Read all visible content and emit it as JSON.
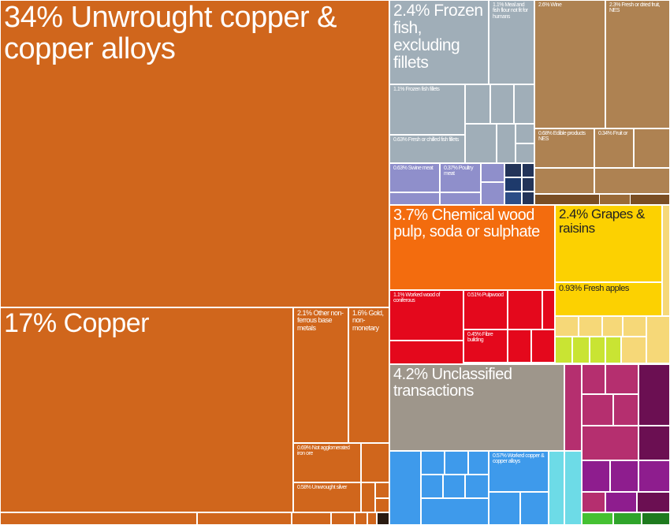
{
  "chart_data": {
    "type": "treemap",
    "title": "",
    "colors": {
      "copper": "#D0661C",
      "fish": "#A0AEB8",
      "food": "#AE8252",
      "meat": "#8F8FCB",
      "dark": "#233459",
      "wood": "#F36C0E",
      "fruit": "#FCD101",
      "fruit_light": "#F6D878",
      "fruit_green": "#C9E433",
      "red": "#E4081C",
      "gray": "#9E968B",
      "blue": "#3E9AEB",
      "cyan": "#6DDBE7",
      "pink": "#B52F6F",
      "purple": "#6B0F52",
      "magenta": "#8E1D8E"
    },
    "items": [
      {
        "id": "unwrought-copper",
        "label": "34% Unwrought copper & copper alloys",
        "value": 34,
        "color": "copper",
        "size": 38
      },
      {
        "id": "copper",
        "label": "17% Copper",
        "value": 17,
        "color": "copper",
        "size": 34
      },
      {
        "id": "other-non-ferrous",
        "label": "2.1% Other non-ferrous base metals",
        "value": 2.1,
        "color": "copper",
        "size": 9
      },
      {
        "id": "gold",
        "label": "1.6% Gold, non-monetary",
        "value": 1.6,
        "color": "copper",
        "size": 9
      },
      {
        "id": "iron-ore",
        "label": "0.69% Not agglomerated iron ore",
        "value": 0.69,
        "color": "copper",
        "size": 7
      },
      {
        "id": "silver",
        "label": "0.58% Unwrought silver",
        "value": 0.58,
        "color": "copper",
        "size": 7
      },
      {
        "id": "frozen-fish",
        "label": "2.4% Frozen fish, excluding fillets",
        "value": 2.4,
        "color": "fish",
        "size": 21
      },
      {
        "id": "fish-meal",
        "label": "1.1% Meal and fish flour not fit for humans",
        "value": 1.1,
        "color": "fish",
        "size": 7
      },
      {
        "id": "frozen-fillets",
        "label": "1.1% Frozen fish fillets",
        "value": 1.1,
        "color": "fish",
        "size": 7
      },
      {
        "id": "fresh-fillets",
        "label": "0.63% Fresh or chilled fish fillets",
        "value": 0.63,
        "color": "fish",
        "size": 7
      },
      {
        "id": "wine",
        "label": "2.6% Wine",
        "value": 2.6,
        "color": "food",
        "size": 7
      },
      {
        "id": "fresh-fruit",
        "label": "2.3% Fresh or dried fruit, NES",
        "value": 2.3,
        "color": "food",
        "size": 7
      },
      {
        "id": "edible-products",
        "label": "0.68% Edible products NES",
        "value": 0.68,
        "color": "food",
        "size": 7
      },
      {
        "id": "fruit-or",
        "label": "0.34% Fruit or",
        "value": 0.34,
        "color": "food",
        "size": 7
      },
      {
        "id": "swine-meat",
        "label": "0.63% Swine meat",
        "value": 0.63,
        "color": "meat",
        "size": 7
      },
      {
        "id": "poultry-meat",
        "label": "0.37% Poultry meat",
        "value": 0.37,
        "color": "meat",
        "size": 7
      },
      {
        "id": "wood-pulp",
        "label": "3.7% Chemical wood pulp, soda or sulphate",
        "value": 3.7,
        "color": "wood",
        "size": 20
      },
      {
        "id": "grapes",
        "label": "2.4% Grapes & raisins",
        "value": 2.4,
        "color": "fruit",
        "size": 17
      },
      {
        "id": "fresh-apples",
        "label": "0.93% Fresh apples",
        "value": 0.93,
        "color": "fruit",
        "size": 11
      },
      {
        "id": "worked-wood",
        "label": "1.1% Worked wood of coniferous",
        "value": 1.1,
        "color": "red",
        "size": 7
      },
      {
        "id": "pulpwood",
        "label": "0.51% Pulpwood",
        "value": 0.51,
        "color": "red",
        "size": 7
      },
      {
        "id": "fibre-building",
        "label": "0.45% Fibre building",
        "value": 0.45,
        "color": "red",
        "size": 7
      },
      {
        "id": "unclassified",
        "label": "4.2% Unclassified transactions",
        "value": 4.2,
        "color": "gray",
        "size": 20
      },
      {
        "id": "worked-copper",
        "label": "0.57% Worked copper & copper alloys",
        "value": 0.57,
        "color": "blue",
        "size": 7
      }
    ]
  }
}
